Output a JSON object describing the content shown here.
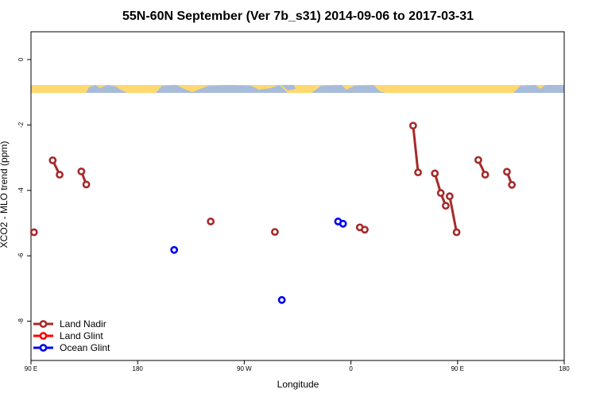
{
  "chart_data": {
    "type": "scatter",
    "title": "55N-60N September (Ver 7b_s31)   2014-09-06 to 2017-03-31",
    "xlabel": "Longitude",
    "ylabel": "XCO2 - MLO trend (ppm)",
    "xlim": [
      -90,
      180
    ],
    "ylim": [
      -9.2,
      0.85
    ],
    "x_ticks": [
      {
        "value": -90,
        "label": "90 E"
      },
      {
        "value": -36,
        "label": "180"
      },
      {
        "value": 18,
        "label": "90 W"
      },
      {
        "value": 72,
        "label": "0"
      },
      {
        "value": 126,
        "label": "90 E"
      },
      {
        "value": 180,
        "label": "180"
      }
    ],
    "y_ticks": [
      {
        "value": 0,
        "label": "0"
      },
      {
        "value": -2,
        "label": "-2"
      },
      {
        "value": -4,
        "label": "-4"
      },
      {
        "value": -6,
        "label": "-6"
      },
      {
        "value": -8,
        "label": "-8"
      }
    ],
    "map_band": {
      "y_top": -0.82,
      "y_bottom": -1.05,
      "land_color": "#ffd970",
      "ocean_color": "#a8bcd9"
    },
    "legend_position": "bottom-left",
    "series": [
      {
        "name": "Land Nadir",
        "color": "#a52a2a",
        "points": [
          [
            -88.5,
            -5.28
          ],
          [
            -79,
            -3.08
          ],
          [
            -75.5,
            -3.52
          ],
          [
            -64.5,
            -3.42
          ],
          [
            -62,
            -3.82
          ],
          [
            1,
            -4.95
          ],
          [
            33.5,
            -5.27
          ],
          [
            76.5,
            -5.13
          ],
          [
            79,
            -5.2
          ],
          [
            103.5,
            -2.02
          ],
          [
            106,
            -3.45
          ],
          [
            114.5,
            -3.48
          ],
          [
            117.5,
            -4.08
          ],
          [
            120,
            -4.47
          ],
          [
            122,
            -4.18
          ],
          [
            125.5,
            -5.28
          ],
          [
            136.5,
            -3.07
          ],
          [
            140,
            -3.52
          ],
          [
            151,
            -3.43
          ],
          [
            153.5,
            -3.83
          ]
        ],
        "segments": [
          [
            [
              -79,
              -3.08
            ],
            [
              -75.5,
              -3.52
            ]
          ],
          [
            [
              -64.5,
              -3.42
            ],
            [
              -62,
              -3.82
            ]
          ],
          [
            [
              76.5,
              -5.13
            ],
            [
              79,
              -5.2
            ]
          ],
          [
            [
              103.5,
              -2.02
            ],
            [
              106,
              -3.45
            ]
          ],
          [
            [
              114.5,
              -3.48
            ],
            [
              117.5,
              -4.08
            ],
            [
              120,
              -4.47
            ]
          ],
          [
            [
              122,
              -4.18
            ],
            [
              125.5,
              -5.28
            ]
          ],
          [
            [
              136.5,
              -3.07
            ],
            [
              140,
              -3.52
            ]
          ],
          [
            [
              151,
              -3.43
            ],
            [
              153.5,
              -3.83
            ]
          ]
        ]
      },
      {
        "name": "Land Glint",
        "color": "#ff0000",
        "points": [],
        "segments": []
      },
      {
        "name": "Ocean Glint",
        "color": "#0000ee",
        "points": [
          [
            -17.5,
            -5.82
          ],
          [
            37,
            -7.35
          ],
          [
            65.5,
            -4.95
          ],
          [
            68,
            -5.02
          ]
        ],
        "segments": [
          [
            [
              65.5,
              -4.95
            ],
            [
              68,
              -5.02
            ]
          ]
        ]
      }
    ]
  }
}
